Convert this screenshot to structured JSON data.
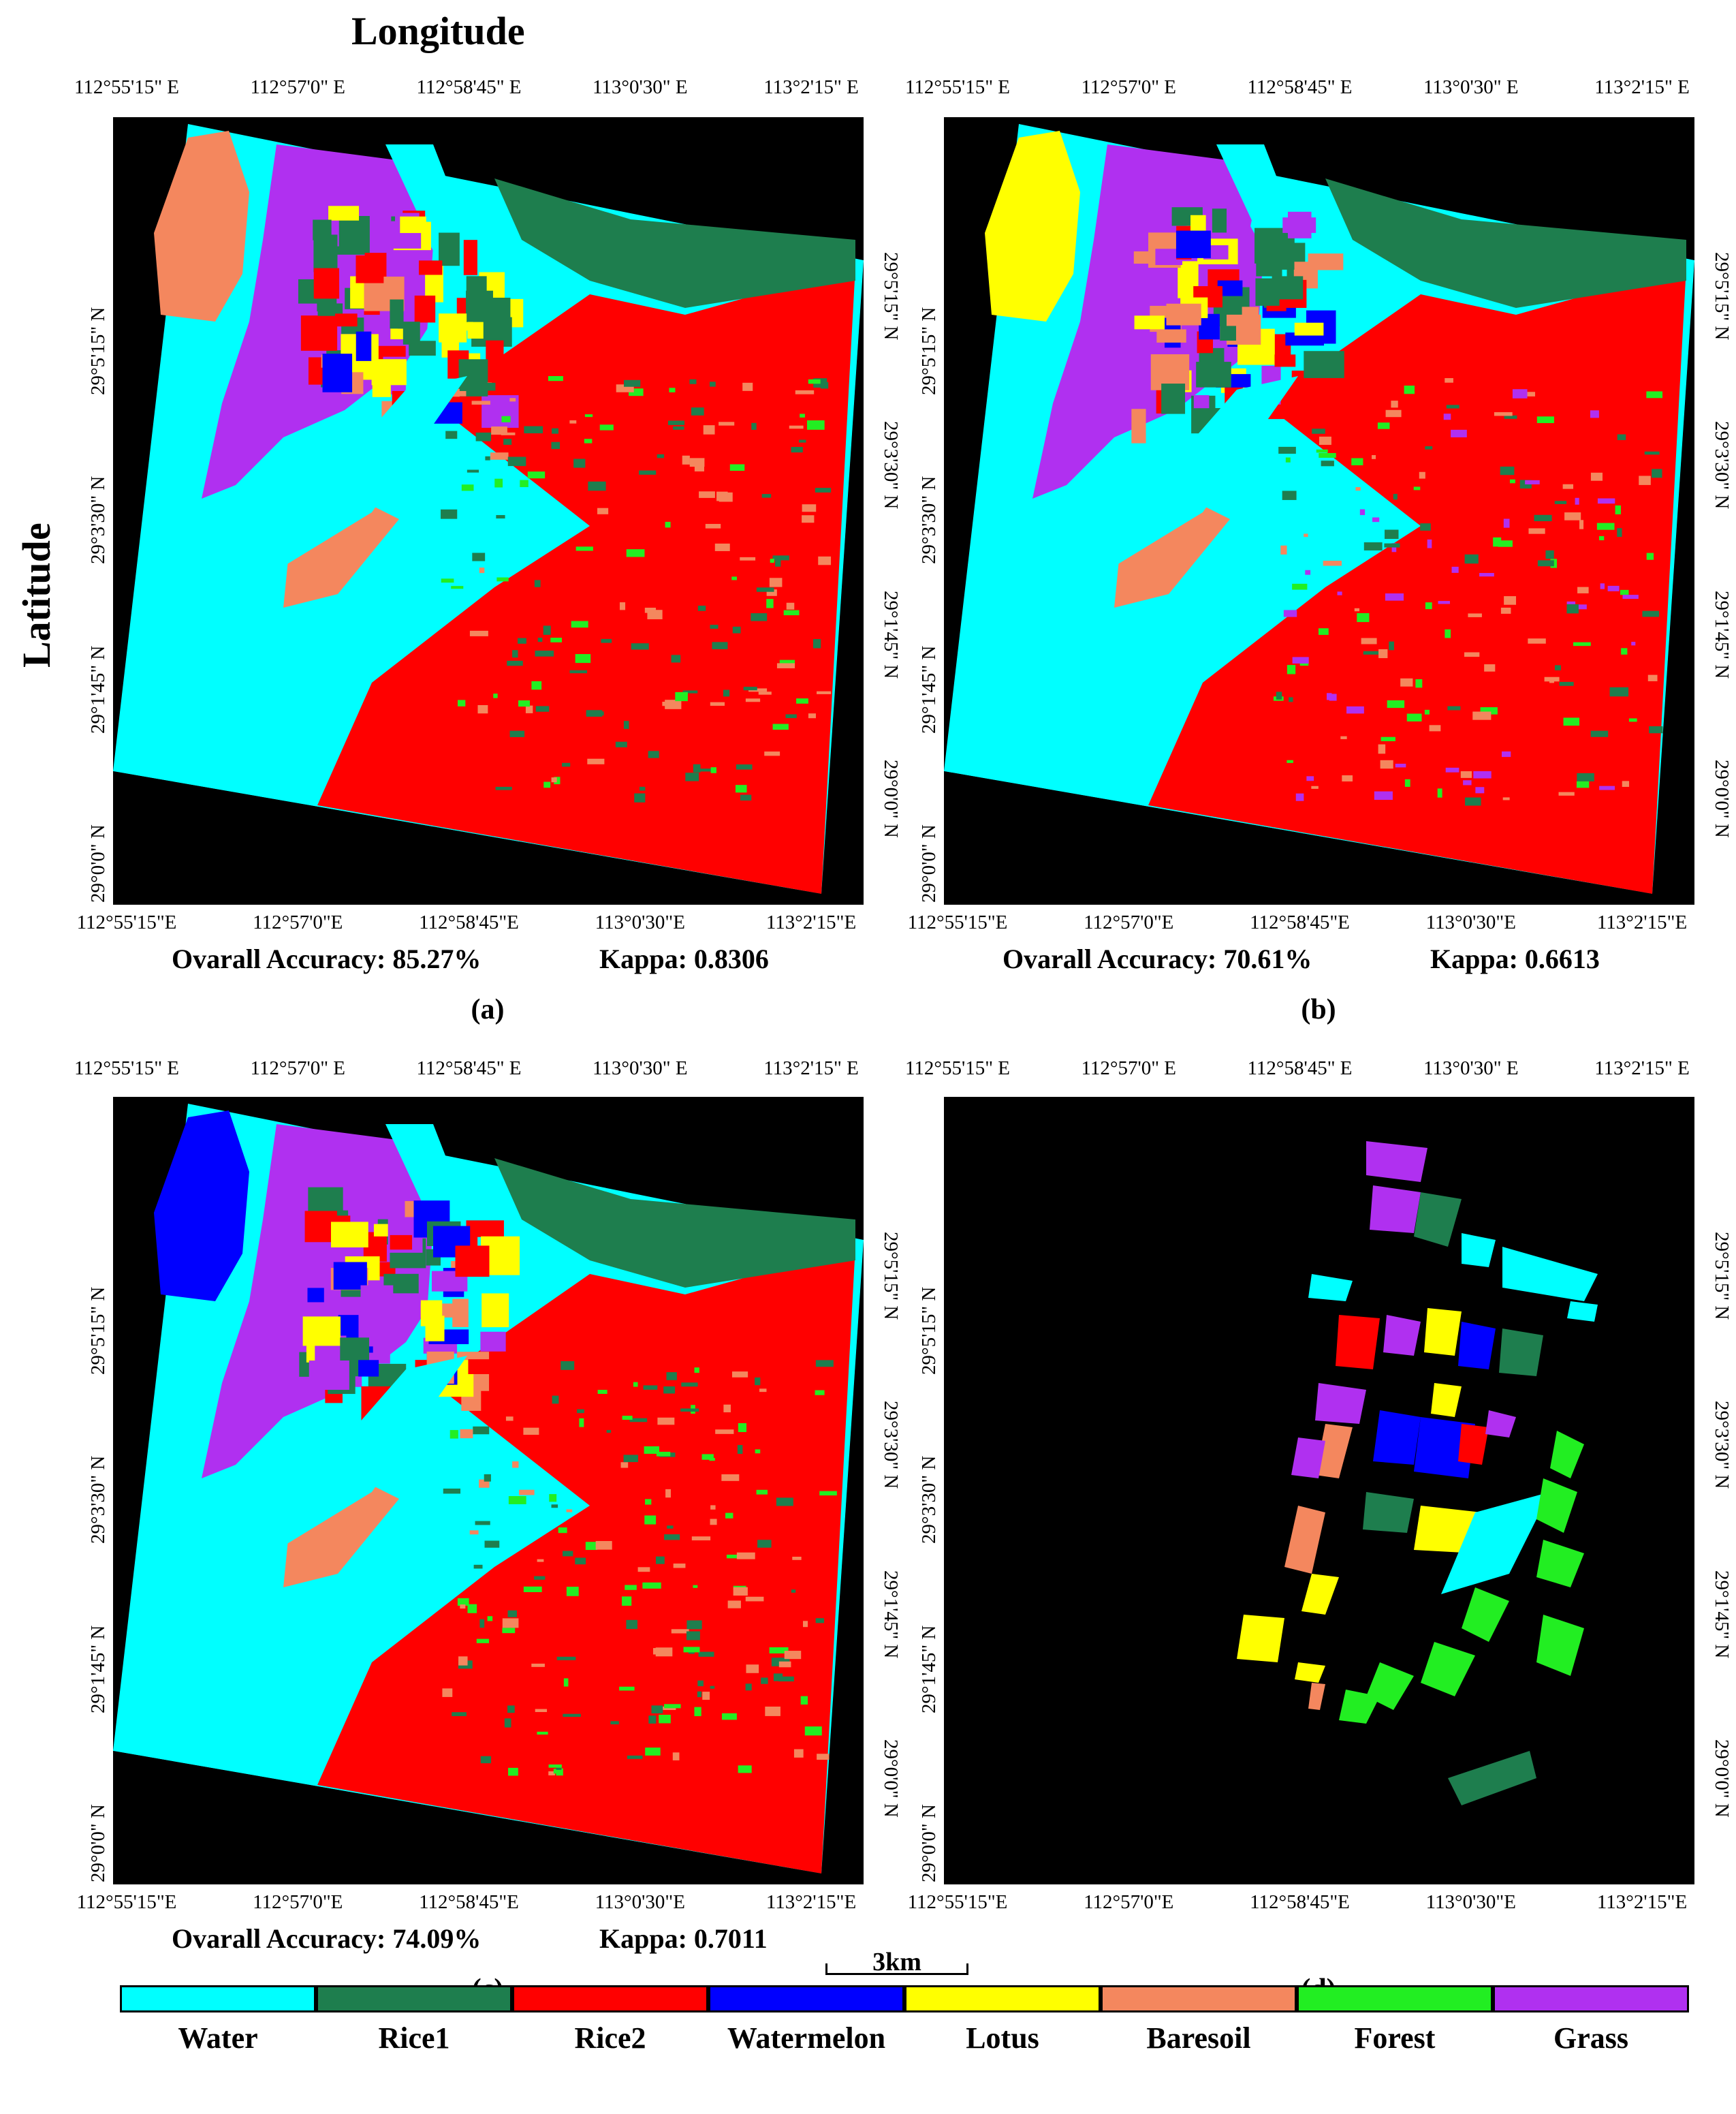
{
  "axes": {
    "x_title": "Longitude",
    "y_title": "Latitude",
    "lon_ticks": [
      "112°55'15\" E",
      "112°57'0\" E",
      "112°58'45\" E",
      "113°0'30\" E",
      "113°2'15\" E"
    ],
    "lon_ticks_bottom": [
      "112°55'15\"E",
      "112°57'0\"E",
      "112°58'45\"E",
      "113°0'30\"E",
      "113°2'15\"E"
    ],
    "lat_ticks": [
      "29°5'15\" N",
      "29°3'30\" N",
      "29°1'45\" N",
      "29°0'0\" N"
    ]
  },
  "panels": [
    {
      "id": "a",
      "label": "(a)",
      "accuracy_text": "Ovarall Accuracy: 85.27%",
      "kappa_text": "Kappa: 0.8306",
      "overall_accuracy_pct": 85.27,
      "kappa": 0.8306
    },
    {
      "id": "b",
      "label": "(b)",
      "accuracy_text": "Ovarall Accuracy: 70.61%",
      "kappa_text": "Kappa: 0.6613",
      "overall_accuracy_pct": 70.61,
      "kappa": 0.6613
    },
    {
      "id": "c",
      "label": "(c)",
      "accuracy_text": "Ovarall Accuracy: 74.09%",
      "kappa_text": "Kappa: 0.7011",
      "overall_accuracy_pct": 74.09,
      "kappa": 0.7011
    },
    {
      "id": "d",
      "label": "(d)"
    }
  ],
  "scale_bar": {
    "label": "3km"
  },
  "legend": [
    {
      "name": "Water",
      "color": "#00FFFF"
    },
    {
      "name": "Rice1",
      "color": "#1E7E4E"
    },
    {
      "name": "Rice2",
      "color": "#FF0000"
    },
    {
      "name": "Watermelon",
      "color": "#0000FF"
    },
    {
      "name": "Lotus",
      "color": "#FFFF00"
    },
    {
      "name": "Baresoil",
      "color": "#F4875E"
    },
    {
      "name": "Forest",
      "color": "#22EE22"
    },
    {
      "name": "Grass",
      "color": "#B030F0"
    }
  ]
}
